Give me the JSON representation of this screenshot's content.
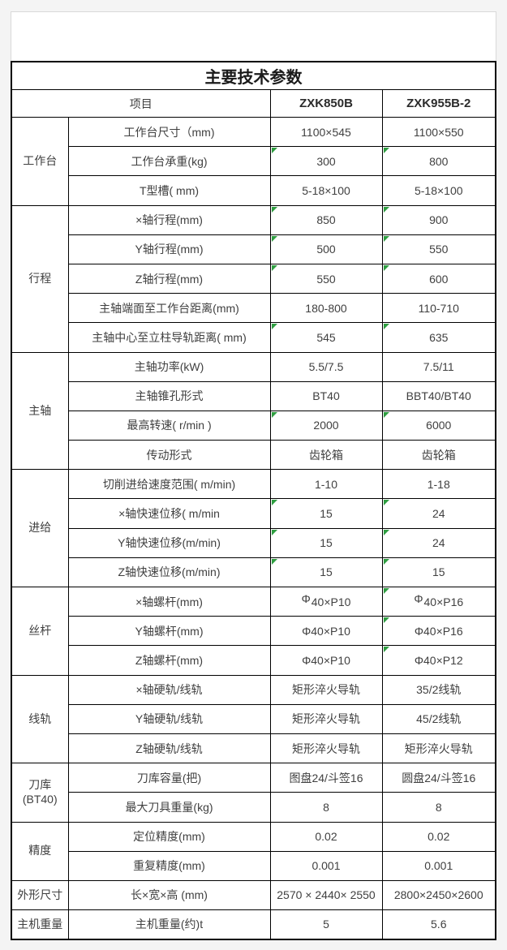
{
  "colors": {
    "page_background": "#f4f4f4",
    "panel_border": "#d9d9d9",
    "table_border": "#000000",
    "text": "#404040",
    "comment_triangle_green": "#2f9e41"
  },
  "table": {
    "title": "主要技术参数",
    "header": {
      "item_label": "项目",
      "col1": "ZXK850B",
      "col2": "ZXK955B-2"
    },
    "groups": [
      {
        "label": "工作台",
        "rows": [
          {
            "label": "工作台尺寸（mm)",
            "v1": "1100×545",
            "v2": "1100×550"
          },
          {
            "label": "工作台承重(kg)",
            "v1": "300",
            "v2": "800",
            "t1": true,
            "t2": true
          },
          {
            "label": "T型槽( mm)",
            "v1": "5-18×100",
            "v2": "5-18×100"
          }
        ]
      },
      {
        "label": "行程",
        "rows": [
          {
            "label": "×轴行程(mm)",
            "v1": "850",
            "v2": "900",
            "t1": true,
            "t2": true
          },
          {
            "label": "Y轴行程(mm)",
            "v1": "500",
            "v2": "550",
            "t1": true,
            "t2": true
          },
          {
            "label": "Z轴行程(mm)",
            "v1": "550",
            "v2": "600",
            "t1": true,
            "t2": true
          },
          {
            "label": "主轴端面至工作台距离(mm)",
            "v1": "180-800",
            "v2": "110-710"
          },
          {
            "label": "主轴中心至立柱导轨距离( mm)",
            "v1": "545",
            "v2": "635",
            "t1": true,
            "t2": true
          }
        ]
      },
      {
        "label": "主轴",
        "rows": [
          {
            "label": "主轴功率(kW)",
            "v1": "5.5/7.5",
            "v2": "7.5/11"
          },
          {
            "label": "主轴锥孔形式",
            "v1": "BT40",
            "v2": "BBT40/BT40"
          },
          {
            "label": "最高转速( r/min )",
            "v1": "2000",
            "v2": "6000",
            "t1": true,
            "t2": true
          },
          {
            "label": "传动形式",
            "v1": "齿轮箱",
            "v2": "齿轮箱"
          }
        ]
      },
      {
        "label": "进给",
        "rows": [
          {
            "label": "切削进给速度范围( m/min)",
            "v1": "1-10",
            "v2": "1-18"
          },
          {
            "label": "×轴快速位移( m/min",
            "v1": "15",
            "v2": "24",
            "t1": true,
            "t2": true
          },
          {
            "label": "Y轴快速位移(m/min)",
            "v1": "15",
            "v2": "24",
            "t1": true,
            "t2": true
          },
          {
            "label": "Z轴快速位移(m/min)",
            "v1": "15",
            "v2": "15",
            "t1": true,
            "t2": true
          }
        ]
      },
      {
        "label": "丝杆",
        "rows": [
          {
            "label": "×轴螺杆(mm)",
            "v1": "Φ40×P10",
            "v2": "Φ40×P16",
            "t2": true,
            "phi_raised": true
          },
          {
            "label": "Y轴螺杆(mm)",
            "v1": "Φ40×P10",
            "v2": "Φ40×P16",
            "t2": true
          },
          {
            "label": "Z轴螺杆(mm)",
            "v1": "Φ40×P10",
            "v2": "Φ40×P12",
            "t2": true
          }
        ]
      },
      {
        "label": "线轨",
        "rows": [
          {
            "label": "×轴硬轨/线轨",
            "v1": "矩形淬火导轨",
            "v2": "35/2线轨"
          },
          {
            "label": "Y轴硬轨/线轨",
            "v1": "矩形淬火导轨",
            "v2": "45/2线轨"
          },
          {
            "label": "Z轴硬轨/线轨",
            "v1": "矩形淬火导轨",
            "v2": "矩形淬火导轨"
          }
        ]
      },
      {
        "label": "刀库\n(BT40)",
        "rows": [
          {
            "label": "刀库容量(把)",
            "v1": "图盘24/斗签16",
            "v2": "圆盘24/斗签16"
          },
          {
            "label": "最大刀具重量(kg)",
            "v1": "8",
            "v2": "8"
          }
        ]
      },
      {
        "label": "精度",
        "rows": [
          {
            "label": "定位精度(mm)",
            "v1": "0.02",
            "v2": "0.02"
          },
          {
            "label": "重复精度(mm)",
            "v1": "0.001",
            "v2": "0.001"
          }
        ]
      },
      {
        "label": "外形尺寸",
        "rows": [
          {
            "label": "长×宽×高 (mm)",
            "v1": "2570 × 2440× 2550",
            "v2": "2800×2450×2600"
          }
        ]
      },
      {
        "label": "主机重量",
        "rows": [
          {
            "label": "主机重量(约)t",
            "v1": "5",
            "v2": "5.6"
          }
        ]
      }
    ]
  }
}
